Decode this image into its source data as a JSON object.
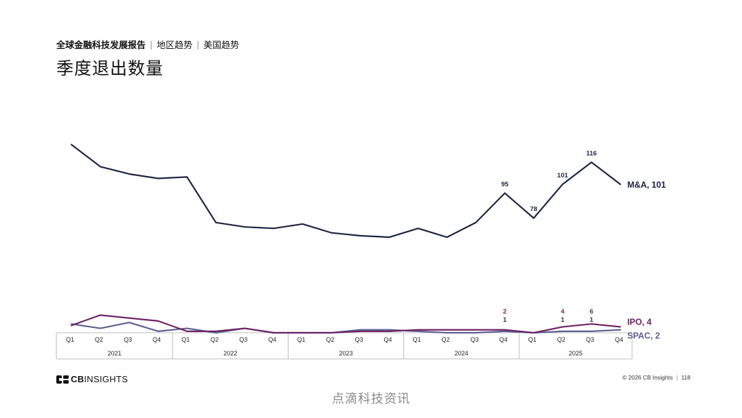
{
  "header": {
    "breadcrumb_main": "全球金融科技发展报告",
    "breadcrumb_items": [
      "地区趋势",
      "美国趋势"
    ],
    "title": "季度退出数量"
  },
  "chart_data": {
    "type": "line",
    "title": "季度退出数量",
    "xlabel": "",
    "ylabel": "",
    "categories": [
      "Q1",
      "Q2",
      "Q3",
      "Q4",
      "Q1",
      "Q2",
      "Q3",
      "Q4",
      "Q1",
      "Q2",
      "Q3",
      "Q4",
      "Q1",
      "Q2",
      "Q3",
      "Q4",
      "Q1",
      "Q2",
      "Q3",
      "Q4"
    ],
    "years": [
      {
        "label": "2021",
        "quarters": 4
      },
      {
        "label": "2022",
        "quarters": 4
      },
      {
        "label": "2023",
        "quarters": 4
      },
      {
        "label": "2024",
        "quarters": 4
      },
      {
        "label": "2025",
        "quarters": 4
      }
    ],
    "ylim": [
      0,
      120
    ],
    "grid": false,
    "legend": "end-of-line labels",
    "series": [
      {
        "name": "M&A, 101",
        "color": "#1c2541",
        "values": [
          128,
          113,
          108,
          105,
          106,
          75,
          72,
          71,
          74,
          68,
          66,
          65,
          71,
          65,
          75,
          95,
          78,
          101,
          116,
          101
        ],
        "labels": {
          "15": "95",
          "16": "78",
          "17": "101",
          "18": "116"
        }
      },
      {
        "name": "IPO, 4",
        "color": "#6d2466",
        "values": [
          5,
          12,
          10,
          8,
          1,
          1,
          3,
          0,
          0,
          0,
          1,
          1,
          2,
          2,
          2,
          2,
          0,
          4,
          6,
          4
        ],
        "labels": {
          "15": "2",
          "17": "4",
          "18": "6"
        }
      },
      {
        "name": "SPAC, 2",
        "color": "#5c6191",
        "values": [
          6,
          3,
          7,
          1,
          3,
          0,
          3,
          0,
          0,
          0,
          2,
          2,
          1,
          0,
          0,
          1,
          0,
          1,
          1,
          2
        ],
        "labels": {
          "15": "1",
          "17": "1",
          "18": "1"
        }
      }
    ]
  },
  "footer": {
    "logo_text_bold": "CB",
    "logo_text": "INSIGHTS",
    "copyright": "© 2026 CB Insights",
    "page_number": "118",
    "watermark": "点滴科技资讯"
  }
}
